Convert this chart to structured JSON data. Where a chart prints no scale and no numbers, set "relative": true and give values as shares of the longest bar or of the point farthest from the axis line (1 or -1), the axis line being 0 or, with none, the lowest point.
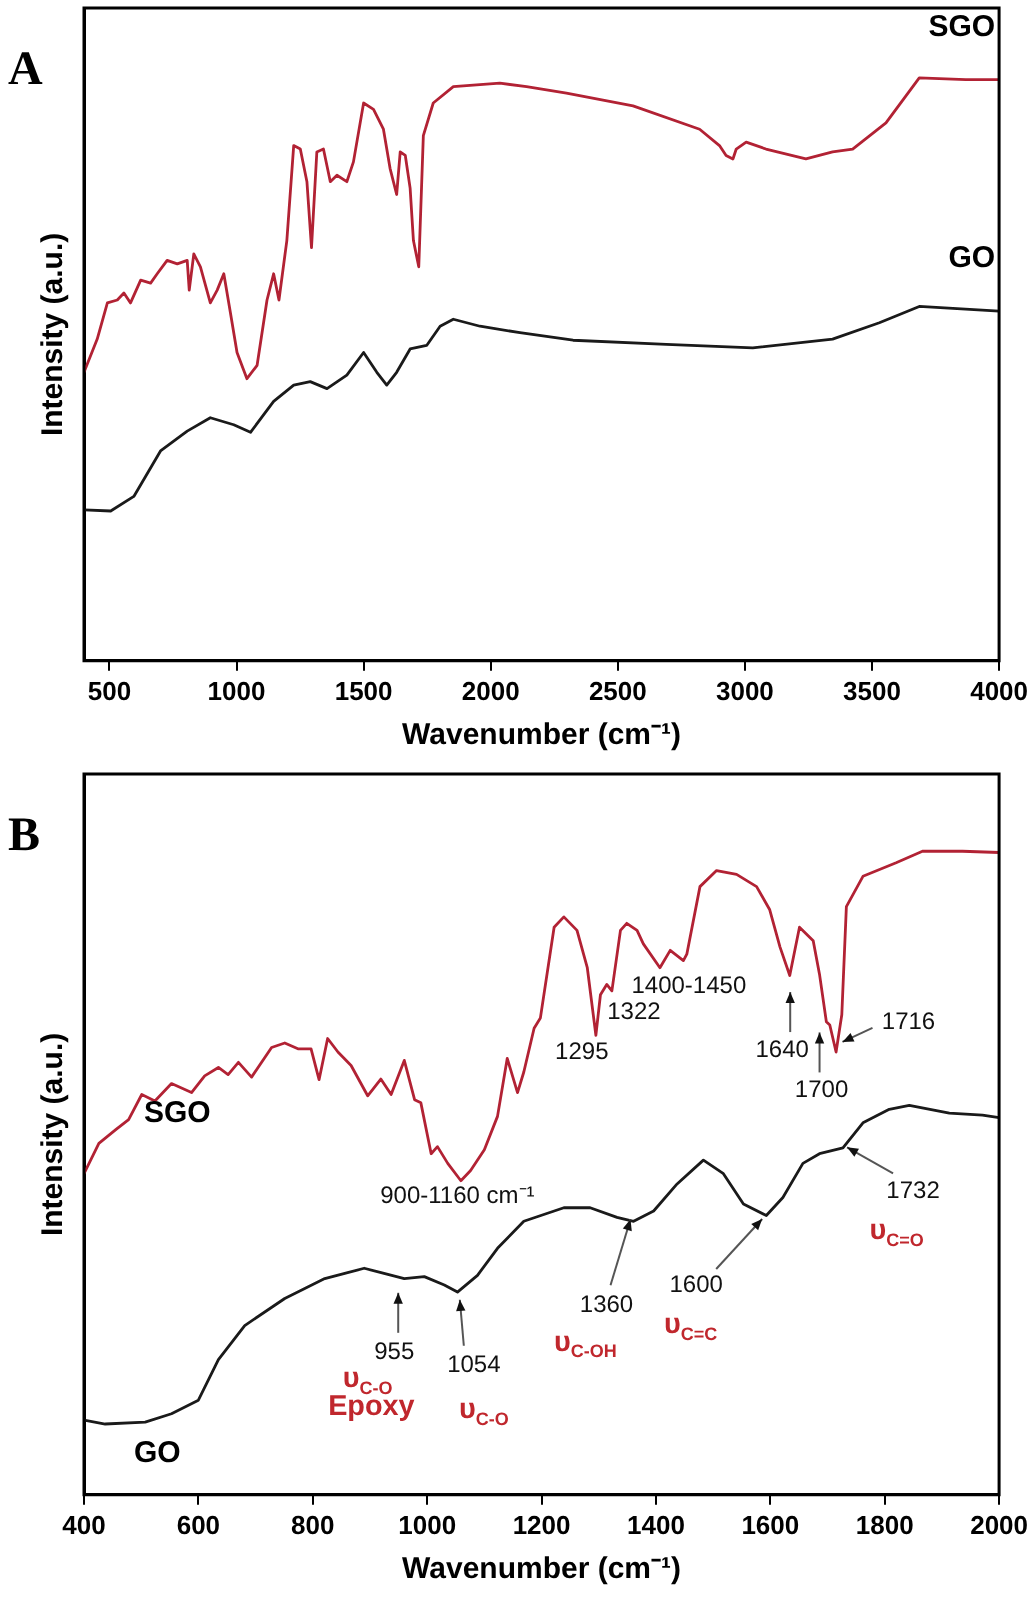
{
  "chart_data": [
    {
      "type": "line",
      "title": "A",
      "xlabel": "Wavenumber (cm⁻¹)",
      "ylabel": "Intensity (a.u.)",
      "relative": true,
      "xlim": [
        400,
        4000
      ],
      "xticks": [
        500,
        1000,
        1500,
        2000,
        2500,
        3000,
        3500,
        4000
      ],
      "grid": false,
      "legend": false,
      "marker": "none",
      "series": [
        {
          "name": "SGO",
          "color": "#b22234",
          "x": [
            400,
            452,
            492,
            531,
            557,
            583,
            623,
            662,
            688,
            727,
            767,
            806,
            814,
            832,
            858,
            897,
            924,
            950,
            976,
            1002,
            1041,
            1081,
            1120,
            1146,
            1167,
            1198,
            1225,
            1251,
            1277,
            1295,
            1316,
            1342,
            1369,
            1395,
            1434,
            1460,
            1500,
            1539,
            1578,
            1604,
            1630,
            1644,
            1664,
            1683,
            1696,
            1717,
            1735,
            1774,
            1853,
            2036,
            2141,
            2298,
            2560,
            2822,
            2900,
            2926,
            2953,
            2966,
            3005,
            3083,
            3240,
            3345,
            3424,
            3555,
            3686,
            3869,
            4000
          ],
          "values": [
            0.495,
            0.552,
            0.614,
            0.619,
            0.631,
            0.614,
            0.653,
            0.648,
            0.664,
            0.687,
            0.681,
            0.687,
            0.636,
            0.698,
            0.676,
            0.614,
            0.636,
            0.664,
            0.597,
            0.529,
            0.484,
            0.507,
            0.619,
            0.664,
            0.619,
            0.721,
            0.884,
            0.878,
            0.822,
            0.709,
            0.873,
            0.878,
            0.822,
            0.833,
            0.822,
            0.856,
            0.957,
            0.946,
            0.912,
            0.845,
            0.8,
            0.873,
            0.867,
            0.811,
            0.721,
            0.676,
            0.901,
            0.957,
            0.985,
            0.991,
            0.985,
            0.974,
            0.952,
            0.912,
            0.884,
            0.867,
            0.861,
            0.878,
            0.89,
            0.878,
            0.861,
            0.873,
            0.878,
            0.923,
            1,
            0.997,
            0.997
          ]
        },
        {
          "name": "GO",
          "color": "#1a1a1a",
          "x": [
            400,
            505,
            596,
            701,
            806,
            897,
            989,
            1055,
            1146,
            1225,
            1290,
            1356,
            1434,
            1500,
            1552,
            1591,
            1630,
            1683,
            1748,
            1801,
            1853,
            1958,
            2115,
            2324,
            2691,
            3031,
            3345,
            3529,
            3686,
            4000
          ],
          "values": [
            0.259,
            0.257,
            0.282,
            0.36,
            0.394,
            0.417,
            0.405,
            0.392,
            0.445,
            0.473,
            0.479,
            0.467,
            0.49,
            0.529,
            0.495,
            0.473,
            0.495,
            0.535,
            0.541,
            0.574,
            0.586,
            0.574,
            0.563,
            0.55,
            0.543,
            0.537,
            0.552,
            0.58,
            0.608,
            0.6
          ]
        }
      ]
    },
    {
      "type": "line",
      "title": "B",
      "xlabel": "Wavenumber (cm⁻¹)",
      "ylabel": "Intensity (a.u.)",
      "relative": true,
      "xlim": [
        400,
        2000
      ],
      "xticks": [
        400,
        600,
        800,
        1000,
        1200,
        1400,
        1600,
        1800,
        2000
      ],
      "grid": false,
      "legend": false,
      "marker": "none",
      "series": [
        {
          "name": "SGO",
          "color": "#b22234",
          "x": [
            400,
            426,
            455,
            478,
            501,
            524,
            553,
            588,
            611,
            635,
            652,
            670,
            693,
            728,
            751,
            774,
            797,
            811,
            826,
            844,
            867,
            896,
            919,
            937,
            960,
            978,
            989,
            1007,
            1018,
            1036,
            1059,
            1076,
            1100,
            1123,
            1140,
            1158,
            1169,
            1187,
            1198,
            1222,
            1239,
            1262,
            1280,
            1295,
            1303,
            1314,
            1323,
            1338,
            1349,
            1367,
            1378,
            1407,
            1425,
            1448,
            1454,
            1477,
            1506,
            1541,
            1576,
            1599,
            1617,
            1634,
            1651,
            1675,
            1686,
            1698,
            1704,
            1715,
            1725,
            1733,
            1762,
            1820,
            1866,
            1936,
            2000
          ],
          "values": [
            0.499,
            0.546,
            0.567,
            0.583,
            0.622,
            0.612,
            0.639,
            0.625,
            0.651,
            0.664,
            0.653,
            0.672,
            0.649,
            0.695,
            0.702,
            0.693,
            0.693,
            0.645,
            0.709,
            0.688,
            0.667,
            0.62,
            0.646,
            0.622,
            0.675,
            0.614,
            0.609,
            0.53,
            0.541,
            0.515,
            0.488,
            0.504,
            0.536,
            0.588,
            0.678,
            0.625,
            0.657,
            0.725,
            0.741,
            0.882,
            0.898,
            0.877,
            0.819,
            0.714,
            0.777,
            0.793,
            0.783,
            0.877,
            0.888,
            0.877,
            0.856,
            0.819,
            0.846,
            0.83,
            0.84,
            0.945,
            0.97,
            0.964,
            0.945,
            0.909,
            0.851,
            0.807,
            0.882,
            0.861,
            0.809,
            0.735,
            0.73,
            0.688,
            0.746,
            0.914,
            0.961,
            0.982,
            1,
            1,
            0.998
          ]
        },
        {
          "name": "GO",
          "color": "#1a1a1a",
          "x": [
            400,
            437,
            507,
            553,
            600,
            635,
            681,
            751,
            821,
            890,
            960,
            995,
            1030,
            1053,
            1088,
            1123,
            1169,
            1239,
            1285,
            1332,
            1361,
            1396,
            1437,
            1483,
            1518,
            1553,
            1593,
            1622,
            1657,
            1686,
            1727,
            1762,
            1808,
            1843,
            1913,
            1971,
            2000
          ],
          "values": [
            0.116,
            0.11,
            0.113,
            0.126,
            0.147,
            0.21,
            0.263,
            0.305,
            0.336,
            0.352,
            0.336,
            0.339,
            0.326,
            0.315,
            0.341,
            0.383,
            0.425,
            0.446,
            0.446,
            0.431,
            0.425,
            0.441,
            0.483,
            0.52,
            0.499,
            0.452,
            0.434,
            0.462,
            0.515,
            0.53,
            0.539,
            0.578,
            0.599,
            0.605,
            0.593,
            0.59,
            0.586
          ]
        }
      ],
      "annotations": [
        "1295",
        "1322",
        "1400-1450",
        "1640",
        "1700",
        "1716",
        "900-1160 cm⁻¹",
        "1732",
        "υ$_{C=O}$",
        "1360",
        "υ$_{C-OH}$",
        "1600",
        "υ$_{C=C}$",
        "955",
        "υ$_{C-O}$",
        "Epoxy",
        "1054",
        "υ$_{C-O}$"
      ]
    }
  ]
}
